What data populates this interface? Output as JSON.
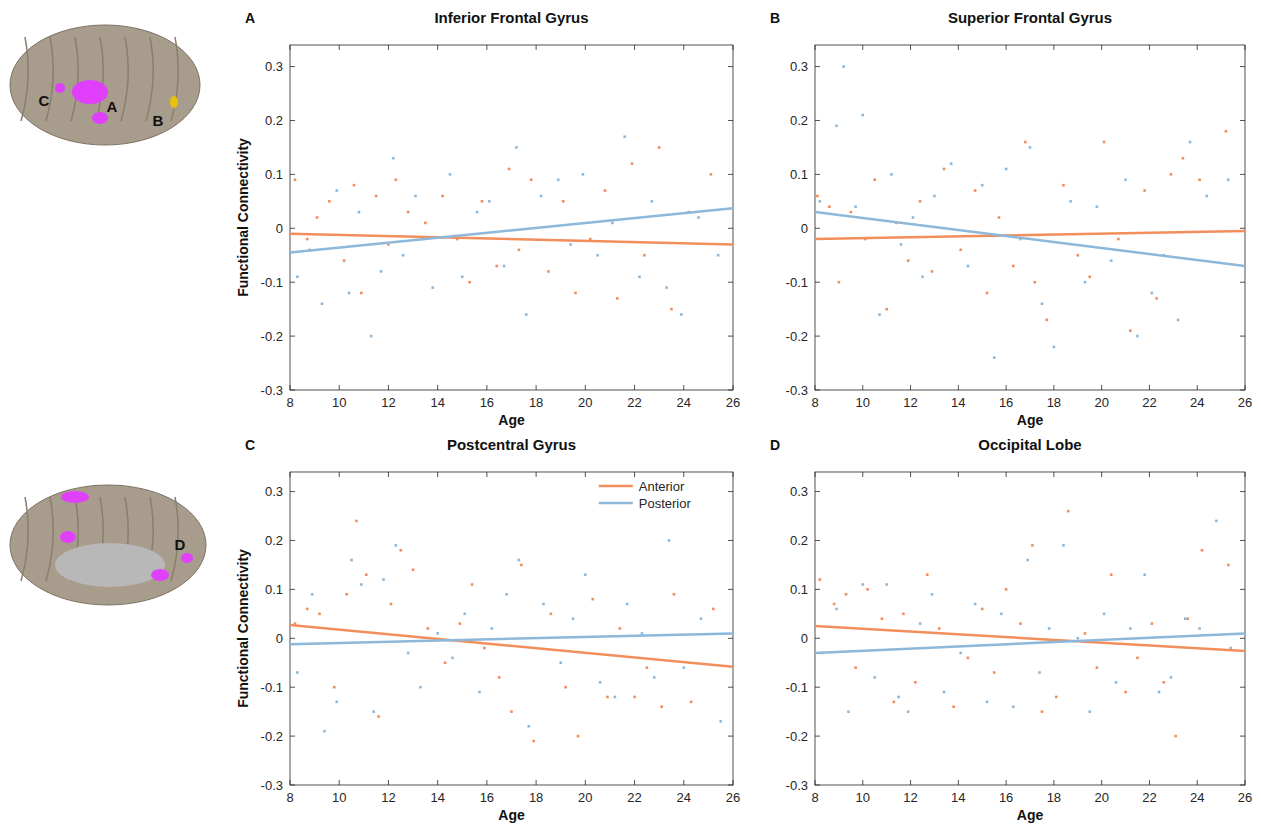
{
  "chart_data": [
    {
      "type": "scatter",
      "panel_label": "A",
      "title": "Inferior Frontal Gyrus",
      "x_label": "Age",
      "y_label": "Functional Connectivity",
      "xlim": [
        8,
        26
      ],
      "ylim": [
        -0.3,
        0.34
      ],
      "xticks": [
        8,
        10,
        12,
        14,
        16,
        18,
        20,
        22,
        24,
        26
      ],
      "yticks": [
        -0.3,
        -0.2,
        -0.1,
        0,
        0.1,
        0.2,
        0.3
      ],
      "marker": "point",
      "series": [
        {
          "name": "Anterior",
          "color": "#f28e5b",
          "x": [
            8.2,
            8.7,
            9.1,
            9.6,
            10.2,
            10.6,
            10.9,
            11.5,
            12.0,
            12.3,
            12.8,
            13.5,
            14.2,
            14.8,
            15.3,
            15.8,
            16.4,
            16.9,
            17.3,
            17.8,
            18.5,
            19.1,
            19.6,
            20.2,
            20.8,
            21.3,
            21.9,
            22.4,
            23.0,
            23.5,
            24.2,
            25.1
          ],
          "values": [
            0.09,
            -0.02,
            0.02,
            0.05,
            -0.06,
            0.08,
            -0.12,
            0.06,
            -0.03,
            0.09,
            0.03,
            0.01,
            0.06,
            -0.02,
            -0.1,
            0.05,
            -0.07,
            0.11,
            -0.04,
            0.09,
            -0.08,
            0.05,
            -0.12,
            -0.02,
            0.07,
            -0.13,
            0.12,
            -0.05,
            0.15,
            -0.15,
            0.03,
            0.1
          ],
          "fit_x": [
            8,
            26
          ],
          "fit": [
            -0.01,
            -0.03
          ]
        },
        {
          "name": "Posterior",
          "color": "#8db8da",
          "x": [
            8.3,
            8.8,
            9.3,
            9.9,
            10.4,
            10.8,
            11.3,
            11.7,
            12.2,
            12.6,
            13.1,
            13.8,
            14.5,
            15.0,
            15.6,
            16.1,
            16.7,
            17.2,
            17.6,
            18.2,
            18.9,
            19.4,
            19.9,
            20.5,
            21.1,
            21.6,
            22.2,
            22.7,
            23.3,
            23.9,
            24.6,
            25.4
          ],
          "values": [
            -0.09,
            -0.04,
            -0.14,
            0.07,
            -0.12,
            0.03,
            -0.2,
            -0.08,
            0.13,
            -0.05,
            0.06,
            -0.11,
            0.1,
            -0.09,
            0.03,
            0.05,
            -0.07,
            0.15,
            -0.16,
            0.06,
            0.09,
            -0.03,
            0.1,
            -0.05,
            0.01,
            0.17,
            -0.09,
            0.05,
            -0.11,
            -0.16,
            0.02,
            -0.05
          ],
          "fit_x": [
            8,
            26
          ],
          "fit": [
            -0.045,
            0.037
          ]
        }
      ]
    },
    {
      "type": "scatter",
      "panel_label": "B",
      "title": "Superior Frontal Gyrus",
      "x_label": "Age",
      "xlim": [
        8,
        26
      ],
      "ylim": [
        -0.3,
        0.34
      ],
      "xticks": [
        8,
        10,
        12,
        14,
        16,
        18,
        20,
        22,
        24,
        26
      ],
      "yticks": [
        -0.3,
        -0.2,
        -0.1,
        0,
        0.1,
        0.2,
        0.3
      ],
      "marker": "point",
      "series": [
        {
          "name": "Anterior",
          "color": "#f28e5b",
          "x": [
            8.1,
            8.6,
            9.0,
            9.5,
            10.1,
            10.5,
            11.0,
            11.4,
            11.9,
            12.4,
            12.9,
            13.4,
            14.1,
            14.7,
            15.2,
            15.7,
            16.3,
            16.8,
            17.2,
            17.7,
            18.4,
            19.0,
            19.5,
            20.1,
            20.7,
            21.2,
            21.8,
            22.3,
            22.9,
            23.4,
            24.1,
            25.2
          ],
          "values": [
            0.06,
            0.04,
            -0.1,
            0.03,
            -0.02,
            0.09,
            -0.15,
            0.01,
            -0.06,
            0.05,
            -0.08,
            0.11,
            -0.04,
            0.07,
            -0.12,
            0.02,
            -0.07,
            0.16,
            -0.1,
            -0.17,
            0.08,
            -0.05,
            -0.09,
            0.16,
            -0.02,
            -0.19,
            0.07,
            -0.13,
            0.1,
            0.13,
            0.09,
            0.18
          ],
          "fit_x": [
            8,
            26
          ],
          "fit": [
            -0.02,
            -0.005
          ]
        },
        {
          "name": "Posterior",
          "color": "#8db8da",
          "x": [
            8.2,
            8.9,
            9.2,
            9.7,
            10.0,
            10.7,
            11.2,
            11.6,
            12.1,
            12.5,
            13.0,
            13.7,
            14.4,
            15.0,
            15.5,
            16.0,
            16.6,
            17.0,
            17.5,
            18.0,
            18.7,
            19.3,
            19.8,
            20.4,
            21.0,
            21.5,
            22.1,
            22.6,
            23.2,
            23.7,
            24.4,
            25.3
          ],
          "values": [
            0.05,
            0.19,
            0.3,
            0.04,
            0.21,
            -0.16,
            0.1,
            -0.03,
            0.02,
            -0.09,
            0.06,
            0.12,
            -0.07,
            0.08,
            -0.24,
            0.11,
            -0.02,
            0.15,
            -0.14,
            -0.22,
            0.05,
            -0.1,
            0.04,
            -0.06,
            0.09,
            -0.2,
            -0.12,
            -0.05,
            -0.17,
            0.16,
            0.06,
            0.09
          ],
          "fit_x": [
            8,
            26
          ],
          "fit": [
            0.03,
            -0.07
          ]
        }
      ]
    },
    {
      "type": "scatter",
      "panel_label": "C",
      "title": "Postcentral Gyrus",
      "x_label": "Age",
      "y_label": "Functional Connectivity",
      "xlim": [
        8,
        26
      ],
      "ylim": [
        -0.3,
        0.34
      ],
      "xticks": [
        8,
        10,
        12,
        14,
        16,
        18,
        20,
        22,
        24,
        26
      ],
      "yticks": [
        -0.3,
        -0.2,
        -0.1,
        0,
        0.1,
        0.2,
        0.3
      ],
      "marker": "point",
      "legend": "upper right",
      "series": [
        {
          "name": "Anterior",
          "color": "#f28e5b",
          "x": [
            8.2,
            8.7,
            9.2,
            9.8,
            10.3,
            10.7,
            11.1,
            11.6,
            12.1,
            12.5,
            13.0,
            13.6,
            14.3,
            14.9,
            15.4,
            15.9,
            16.5,
            17.0,
            17.4,
            17.9,
            18.6,
            19.2,
            19.7,
            20.3,
            20.9,
            21.4,
            22.0,
            22.5,
            23.1,
            23.6,
            24.3,
            25.2
          ],
          "values": [
            0.03,
            0.06,
            0.05,
            -0.1,
            0.09,
            0.24,
            0.13,
            -0.16,
            0.07,
            0.18,
            0.14,
            0.02,
            -0.05,
            0.03,
            0.11,
            -0.02,
            -0.08,
            -0.15,
            0.15,
            -0.21,
            0.05,
            -0.1,
            -0.2,
            0.08,
            -0.12,
            0.02,
            -0.12,
            -0.06,
            -0.14,
            0.09,
            -0.13,
            0.06
          ],
          "fit_x": [
            8,
            26
          ],
          "fit": [
            0.027,
            -0.058
          ]
        },
        {
          "name": "Posterior",
          "color": "#8db8da",
          "x": [
            8.3,
            8.9,
            9.4,
            9.9,
            10.5,
            10.9,
            11.4,
            11.8,
            12.3,
            12.8,
            13.3,
            14.0,
            14.6,
            15.1,
            15.7,
            16.2,
            16.8,
            17.3,
            17.7,
            18.3,
            19.0,
            19.5,
            20.0,
            20.6,
            21.2,
            21.7,
            22.3,
            22.8,
            23.4,
            24.0,
            24.7,
            25.5
          ],
          "values": [
            -0.07,
            0.09,
            -0.19,
            -0.13,
            0.16,
            0.11,
            -0.15,
            0.12,
            0.19,
            -0.03,
            -0.1,
            0.01,
            -0.04,
            0.05,
            -0.11,
            0.02,
            0.09,
            0.16,
            -0.18,
            0.07,
            -0.05,
            0.04,
            0.13,
            -0.09,
            -0.12,
            0.07,
            0.01,
            -0.08,
            0.2,
            -0.06,
            0.04,
            -0.17
          ],
          "fit_x": [
            8,
            26
          ],
          "fit": [
            -0.012,
            0.01
          ]
        }
      ]
    },
    {
      "type": "scatter",
      "panel_label": "D",
      "title": "Occipital Lobe",
      "x_label": "Age",
      "xlim": [
        8,
        26
      ],
      "ylim": [
        -0.3,
        0.34
      ],
      "xticks": [
        8,
        10,
        12,
        14,
        16,
        18,
        20,
        22,
        24,
        26
      ],
      "yticks": [
        -0.3,
        -0.2,
        -0.1,
        0,
        0.1,
        0.2,
        0.3
      ],
      "marker": "point",
      "series": [
        {
          "name": "Anterior",
          "color": "#f28e5b",
          "x": [
            8.2,
            8.8,
            9.3,
            9.7,
            10.2,
            10.8,
            11.3,
            11.7,
            12.2,
            12.7,
            13.2,
            13.8,
            14.4,
            15.0,
            15.5,
            16.0,
            16.6,
            17.1,
            17.5,
            18.1,
            18.6,
            19.3,
            19.8,
            20.4,
            21.0,
            21.5,
            22.1,
            22.6,
            23.1,
            23.6,
            24.2,
            25.3
          ],
          "values": [
            0.12,
            0.07,
            0.09,
            -0.06,
            0.1,
            0.04,
            -0.13,
            0.05,
            -0.09,
            0.13,
            0.02,
            -0.14,
            -0.04,
            0.06,
            -0.07,
            0.1,
            0.03,
            0.19,
            -0.15,
            -0.12,
            0.26,
            0.01,
            -0.06,
            0.13,
            -0.11,
            -0.04,
            0.03,
            -0.09,
            -0.2,
            0.04,
            0.18,
            0.15
          ],
          "fit_x": [
            8,
            26
          ],
          "fit": [
            0.025,
            -0.026
          ]
        },
        {
          "name": "Posterior",
          "color": "#8db8da",
          "x": [
            8.3,
            8.9,
            9.4,
            10.0,
            10.5,
            11.0,
            11.5,
            11.9,
            12.4,
            12.9,
            13.4,
            14.1,
            14.7,
            15.2,
            15.8,
            16.3,
            16.9,
            17.4,
            17.8,
            18.4,
            19.0,
            19.5,
            20.1,
            20.6,
            21.2,
            21.8,
            22.4,
            22.9,
            23.5,
            24.1,
            24.8,
            25.4
          ],
          "values": [
            -0.03,
            0.06,
            -0.15,
            0.11,
            -0.08,
            0.11,
            -0.12,
            -0.15,
            0.03,
            0.09,
            -0.11,
            -0.03,
            0.07,
            -0.13,
            0.05,
            -0.14,
            0.16,
            -0.07,
            0.02,
            0.19,
            0.0,
            -0.15,
            0.05,
            -0.09,
            0.02,
            0.13,
            -0.11,
            -0.08,
            0.04,
            0.02,
            0.24,
            -0.02
          ],
          "fit_x": [
            8,
            26
          ],
          "fit": [
            -0.03,
            0.01
          ]
        }
      ]
    }
  ],
  "brain_labels": {
    "lateral": [
      "C",
      "A",
      "B"
    ],
    "medial": [
      "D"
    ]
  }
}
